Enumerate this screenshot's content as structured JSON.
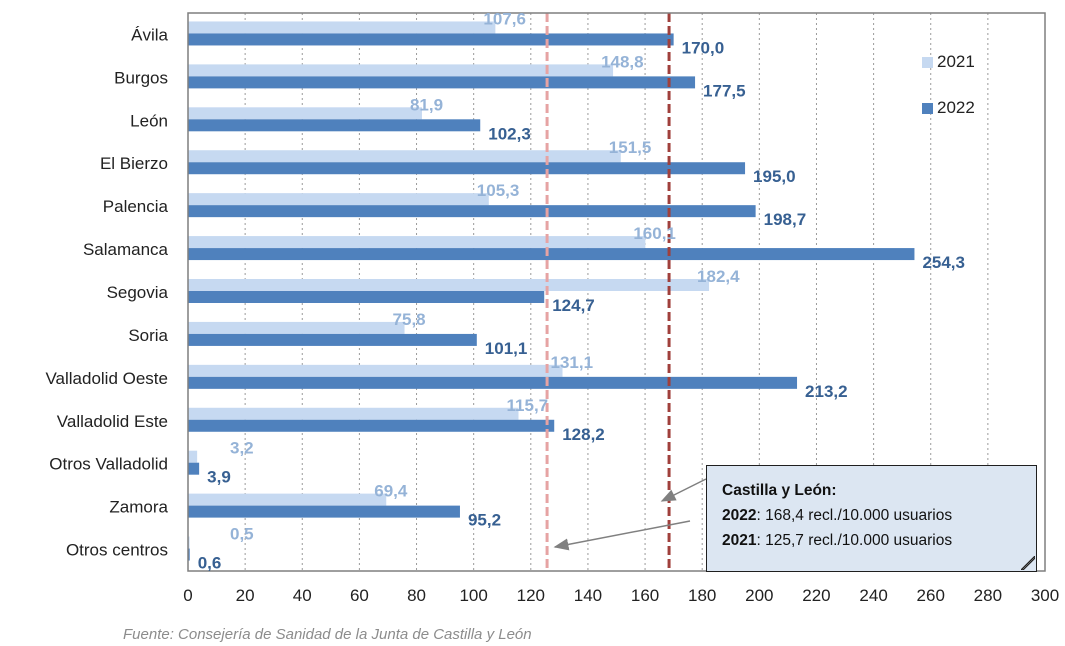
{
  "chart_data": {
    "type": "bar",
    "orientation": "horizontal",
    "categories": [
      "Ávila",
      "Burgos",
      "León",
      "El Bierzo",
      "Palencia",
      "Salamanca",
      "Segovia",
      "Soria",
      "Valladolid Oeste",
      "Valladolid Este",
      "Otros Valladolid",
      "Zamora",
      "Otros centros"
    ],
    "series": [
      {
        "name": "2021",
        "color": "#c6d9f1",
        "values": [
          107.6,
          148.8,
          81.9,
          151.5,
          105.3,
          160.1,
          182.4,
          75.8,
          131.1,
          115.7,
          3.2,
          69.4,
          0.5
        ],
        "labels": [
          "107,6",
          "148,8",
          "81,9",
          "151,5",
          "105,3",
          "160,1",
          "182,4",
          "75,8",
          "131,1",
          "115,7",
          "3,2",
          "69,4",
          "0,5"
        ]
      },
      {
        "name": "2022",
        "color": "#4f81bd",
        "values": [
          170.0,
          177.5,
          102.3,
          195.0,
          198.7,
          254.3,
          124.7,
          101.1,
          213.2,
          128.2,
          3.9,
          95.2,
          0.6
        ],
        "labels": [
          "170,0",
          "177,5",
          "102,3",
          "195,0",
          "198,7",
          "254,3",
          "124,7",
          "101,1",
          "213,2",
          "128,2",
          "3,9",
          "95,2",
          "0,6"
        ]
      }
    ],
    "xlim": [
      0,
      300
    ],
    "xticks": [
      "0",
      "20",
      "40",
      "60",
      "80",
      "100",
      "120",
      "140",
      "160",
      "180",
      "200",
      "220",
      "240",
      "260",
      "280",
      "300"
    ],
    "grid": "vertical dotted",
    "legend": "right",
    "reference_lines": [
      {
        "year": "2022",
        "value": 168.4,
        "color": "#a0403c",
        "style": "dashed"
      },
      {
        "year": "2021",
        "value": 125.7,
        "color": "#e6a3a3",
        "style": "dashed"
      }
    ]
  },
  "callout": {
    "title": "Castilla y León:",
    "line1_year": "2022",
    "line1_text": ": 168,4 recl./10.000 usuarios",
    "line2_year": "2021",
    "line2_text": ": 125,7 recl./10.000 usuarios",
    "bg": "#dce6f2"
  },
  "source": "Fuente: Consejería de Sanidad de la Junta de Castilla y León"
}
